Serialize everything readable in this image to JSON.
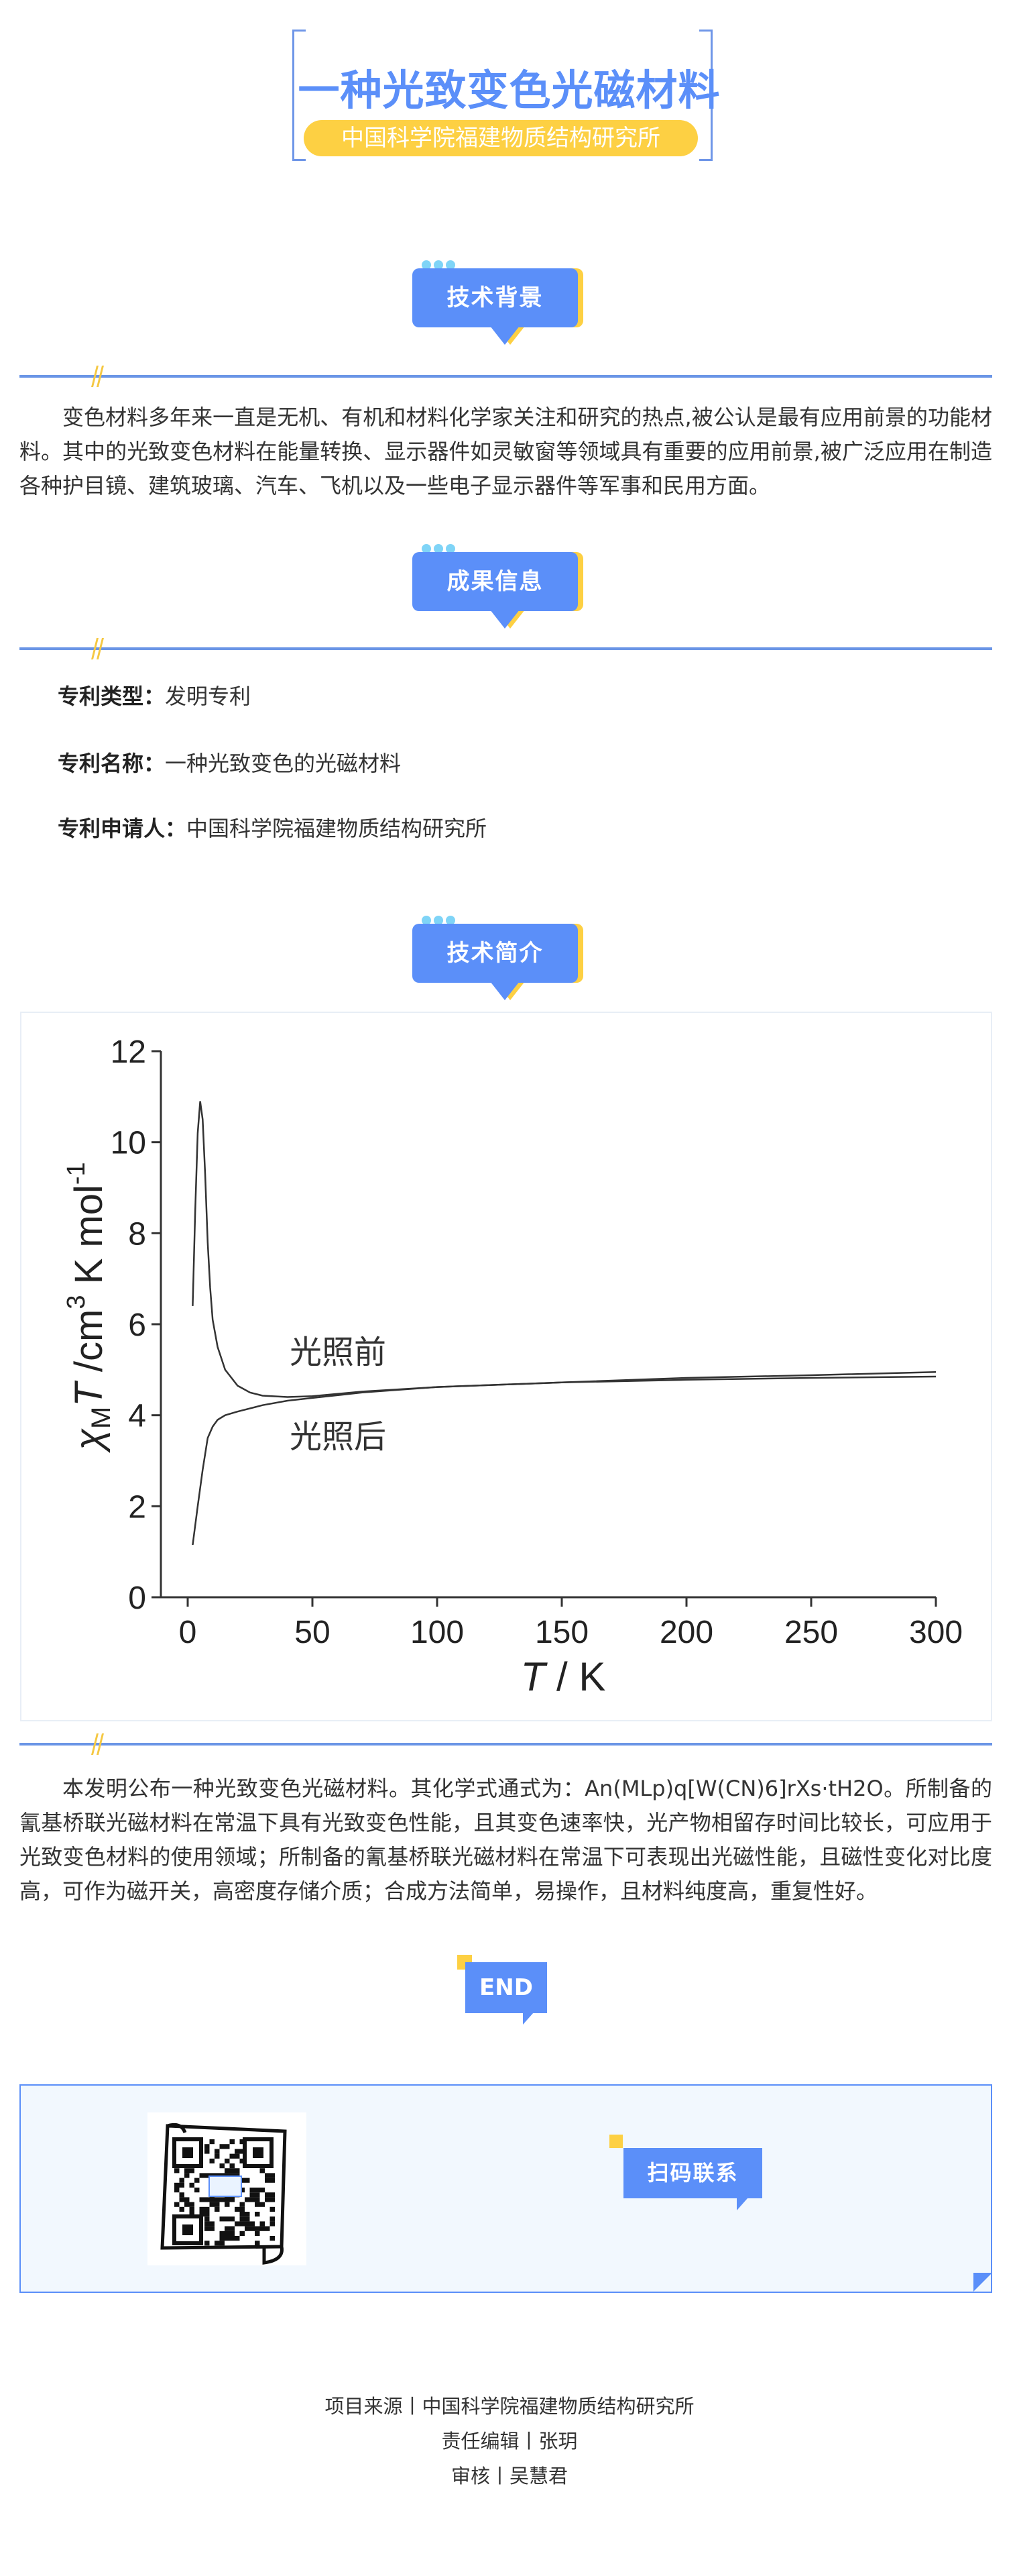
{
  "header": {
    "title": "一种光致变色光磁材料",
    "institution": "中国科学院福建物质结构研究所",
    "accent_color": "#5b8ff9",
    "highlight_color": "#fdd043"
  },
  "sections": {
    "background": {
      "tag": "技术背景",
      "text": "变色材料多年来一直是无机、有机和材料化学家关注和研究的热点,被公认是最有应用前景的功能材料。其中的光致变色材料在能量转换、显示器件如灵敏窗等领域具有重要的应用前景,被广泛应用在制造各种护目镜、建筑玻璃、汽车、飞机以及一些电子显示器件等军事和民用方面。"
    },
    "results": {
      "tag": "成果信息",
      "items": [
        {
          "label": "专利类型：",
          "value": "发明专利"
        },
        {
          "label": "专利名称：",
          "value": "一种光致变色的光磁材料"
        },
        {
          "label": "专利申请人：",
          "value": "中国科学院福建物质结构研究所"
        }
      ]
    },
    "intro": {
      "tag": "技术简介",
      "text": "本发明公布一种光致变色光磁材料。其化学式通式为：An(MLp)q[W(CN)6]rXs·tH2O。所制备的氰基桥联光磁材料在常温下具有光致变色性能，且其变色速率快，光产物相留存时间比较长，可应用于光致变色材料的使用领域；所制备的氰基桥联光磁材料在常温下可表现出光磁性能，且磁性变化对比度高，可作为磁开关，高密度存储介质；合成方法简单，易操作，且材料纯度高，重复性好。"
    }
  },
  "chart_data": {
    "type": "line",
    "title": "",
    "xlabel_italic": "T",
    "xlabel_rest": " / K",
    "ylabel": {
      "chi": "χ",
      "sub": "M",
      "t": "T",
      "unit": " /cm",
      "sup3": "3",
      "unit2": " K mol",
      "supm1": "-1"
    },
    "xlim": [
      -10,
      300
    ],
    "ylim": [
      0,
      12
    ],
    "xticks": [
      0,
      50,
      100,
      150,
      200,
      250,
      300
    ],
    "yticks": [
      0,
      2,
      4,
      6,
      8,
      10,
      12
    ],
    "grid": false,
    "line_color": "#333333",
    "series": [
      {
        "name": "光照前",
        "x": [
          2,
          3,
          4,
          5,
          6,
          7,
          8,
          9,
          10,
          12,
          15,
          20,
          25,
          30,
          40,
          50,
          70,
          100,
          150,
          200,
          250,
          300
        ],
        "y": [
          6.4,
          8.5,
          10.2,
          10.9,
          10.5,
          9.3,
          7.8,
          6.8,
          6.1,
          5.5,
          5.0,
          4.65,
          4.5,
          4.43,
          4.4,
          4.42,
          4.52,
          4.62,
          4.72,
          4.82,
          4.88,
          4.95
        ]
      },
      {
        "name": "光照后",
        "x": [
          2,
          4,
          6,
          8,
          10,
          12,
          15,
          20,
          30,
          40,
          50,
          70,
          100,
          150,
          200,
          250,
          300
        ],
        "y": [
          1.15,
          2.0,
          2.8,
          3.5,
          3.75,
          3.9,
          4.0,
          4.08,
          4.22,
          4.32,
          4.38,
          4.5,
          4.62,
          4.72,
          4.78,
          4.82,
          4.85
        ]
      }
    ]
  },
  "end_label": "END",
  "contact": {
    "tag": "扫码联系",
    "qr_icon": "qr-code"
  },
  "footer": {
    "source": "项目来源丨中国科学院福建物质结构研究所",
    "editor": "责任编辑丨张玥",
    "reviewer": "审核丨吴慧君"
  }
}
